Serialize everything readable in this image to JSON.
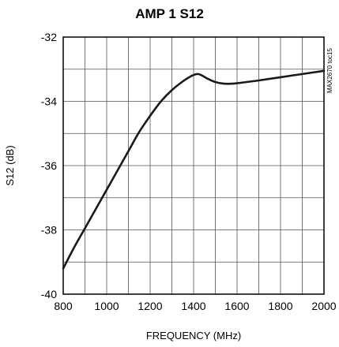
{
  "chart_data": {
    "type": "line",
    "title": "AMP 1 S12",
    "xlabel": "FREQUENCY (MHz)",
    "ylabel": "S12 (dB)",
    "side_note": "MAX2670 toc15",
    "xlim": [
      800,
      2000
    ],
    "ylim": [
      -40,
      -32
    ],
    "xticks": [
      800,
      1000,
      1200,
      1400,
      1600,
      1800,
      2000
    ],
    "yticks": [
      -40,
      -38,
      -36,
      -34,
      -32
    ],
    "grid": true,
    "series": [
      {
        "x": [
          800,
          850,
          900,
          950,
          1000,
          1050,
          1100,
          1150,
          1200,
          1250,
          1300,
          1350,
          1380,
          1400,
          1420,
          1440,
          1460,
          1500,
          1540,
          1580,
          1620,
          1700,
          1800,
          1900,
          2000
        ],
        "y": [
          -39.2,
          -38.55,
          -37.95,
          -37.35,
          -36.75,
          -36.15,
          -35.55,
          -34.95,
          -34.45,
          -34.0,
          -33.65,
          -33.38,
          -33.25,
          -33.18,
          -33.15,
          -33.2,
          -33.28,
          -33.4,
          -33.45,
          -33.45,
          -33.42,
          -33.35,
          -33.25,
          -33.15,
          -33.05
        ],
        "color": "#1a1a1a"
      }
    ]
  }
}
